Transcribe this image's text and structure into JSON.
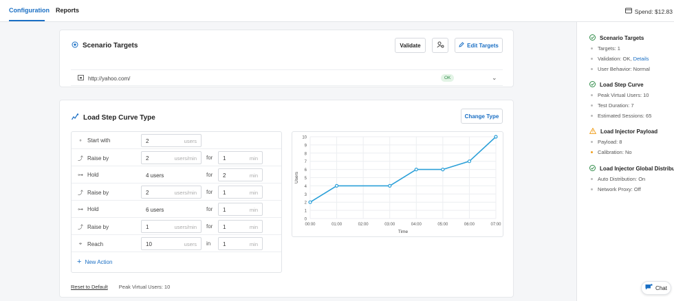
{
  "tabs": {
    "configuration": "Configuration",
    "reports": "Reports"
  },
  "spend": "Spend: $12.83",
  "targets_card": {
    "title": "Scenario Targets",
    "validate": "Validate",
    "edit_targets": "Edit Targets",
    "url": "http://yahoo.com/",
    "status": "OK"
  },
  "curve_card": {
    "title": "Load Step Curve Type",
    "change_type": "Change Type",
    "new_action": "New Action",
    "reset": "Reset to Default",
    "peak": "Peak Virtual Users: 10"
  },
  "steps": [
    {
      "action": "Start with",
      "icon": "dot-icon",
      "value": "2",
      "unit": "users"
    },
    {
      "action": "Raise by",
      "icon": "ramp-icon",
      "value": "2",
      "unit": "users/min",
      "conj": "for",
      "dur": "1",
      "dur_unit": "min"
    },
    {
      "action": "Hold",
      "icon": "hold-icon",
      "value": "4 users",
      "unit": "",
      "conj": "for",
      "dur": "2",
      "dur_unit": "min"
    },
    {
      "action": "Raise by",
      "icon": "ramp-icon",
      "value": "2",
      "unit": "users/min",
      "conj": "for",
      "dur": "1",
      "dur_unit": "min"
    },
    {
      "action": "Hold",
      "icon": "hold-icon",
      "value": "6 users",
      "unit": "",
      "conj": "for",
      "dur": "1",
      "dur_unit": "min"
    },
    {
      "action": "Raise by",
      "icon": "ramp-icon",
      "value": "1",
      "unit": "users/min",
      "conj": "for",
      "dur": "1",
      "dur_unit": "min"
    },
    {
      "action": "Reach",
      "icon": "target-icon",
      "value": "10",
      "unit": "users",
      "conj": "in",
      "dur": "1",
      "dur_unit": "min"
    }
  ],
  "chart_data": {
    "type": "line",
    "x": [
      "00:00",
      "01:00",
      "02:00",
      "03:00",
      "04:00",
      "05:00",
      "06:00",
      "07:00"
    ],
    "series": [
      {
        "values_points": [
          [
            0,
            2
          ],
          [
            1,
            4
          ],
          [
            3,
            4
          ],
          [
            4,
            6
          ],
          [
            5,
            6
          ],
          [
            6,
            7
          ],
          [
            7,
            10
          ]
        ]
      }
    ],
    "ylim": [
      0,
      10
    ],
    "yticks": [
      0,
      1,
      2,
      3,
      4,
      5,
      6,
      7,
      8,
      9,
      10
    ],
    "xlabel": "Time",
    "ylabel": "Users",
    "line_color": "#2a9fd8",
    "grid": true
  },
  "sidebar": {
    "sections": [
      {
        "title": "Scenario Targets",
        "status": "ok",
        "items": [
          {
            "text": "Targets: 1"
          },
          {
            "text": "Validation: OK, ",
            "link": "Details"
          },
          {
            "text": "User Behavior: Normal"
          }
        ]
      },
      {
        "title": "Load Step Curve",
        "status": "ok",
        "items": [
          {
            "text": "Peak Virtual Users: 10"
          },
          {
            "text": "Test Duration: 7"
          },
          {
            "text": "Estimated Sessions: 65"
          }
        ]
      },
      {
        "title": "Load Injector Payload",
        "status": "warn",
        "items": [
          {
            "text": "Payload: 8"
          },
          {
            "text": "Calibration: No",
            "warn": true
          }
        ]
      },
      {
        "title": "Load Injector Global Distribution",
        "status": "ok",
        "items": [
          {
            "text": "Auto Distribution: On"
          },
          {
            "text": "Network Proxy: Off"
          }
        ]
      }
    ]
  },
  "chat": "Chat",
  "colors": {
    "accent": "#1a6fc4",
    "ok": "#2e8b47",
    "warn": "#f0a020"
  }
}
